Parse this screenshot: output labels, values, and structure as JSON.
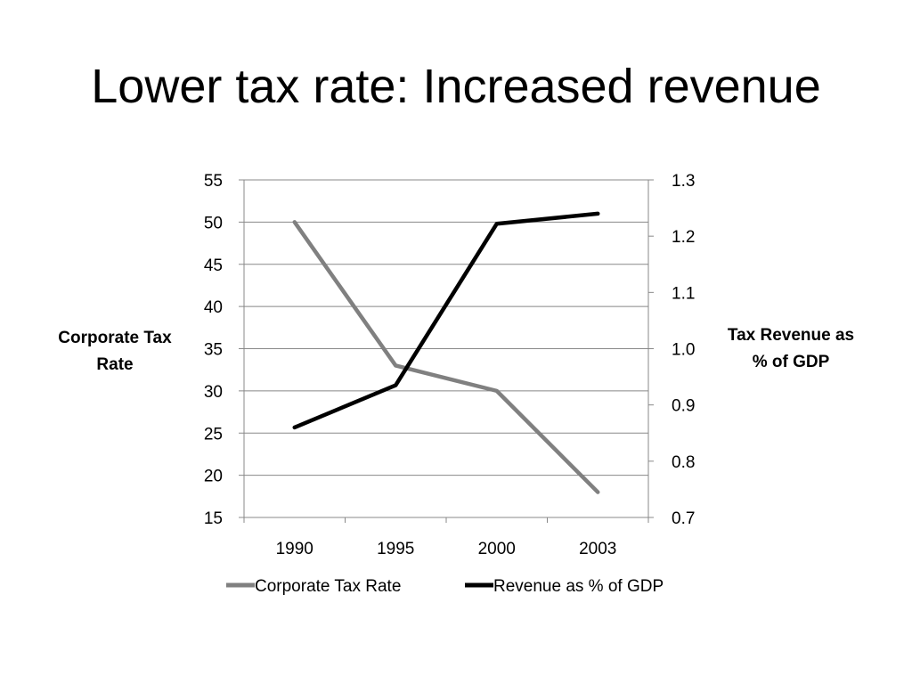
{
  "slide": {
    "title": "Lower tax rate: Increased revenue"
  },
  "colors": {
    "tax_rate_line": "#808080",
    "revenue_line": "#000000",
    "grid": "#888888"
  },
  "chart_data": {
    "type": "line",
    "categories": [
      "1990",
      "1995",
      "2000",
      "2003"
    ],
    "series": [
      {
        "name": "Corporate Tax Rate",
        "axis": "left",
        "values": [
          50,
          33,
          30,
          18
        ]
      },
      {
        "name": "Revenue as % of GDP",
        "axis": "right",
        "values": [
          0.86,
          0.935,
          1.222,
          1.24
        ]
      }
    ],
    "y_left": {
      "label_lines": [
        "Corporate Tax",
        "Rate"
      ],
      "ylim": [
        15,
        55
      ],
      "ticks": [
        "55",
        "50",
        "45",
        "40",
        "35",
        "30",
        "25",
        "20",
        "15"
      ]
    },
    "y_right": {
      "label_lines": [
        "Tax Revenue as",
        "% of GDP"
      ],
      "ylim": [
        0.7,
        1.3
      ],
      "ticks": [
        "1.3",
        "1.2",
        "1.1",
        "1.0",
        "0.9",
        "0.8",
        "0.7"
      ]
    },
    "grid": true,
    "legend": {
      "position": "bottom",
      "entries": [
        "Corporate Tax Rate",
        "Revenue as % of GDP"
      ]
    }
  }
}
